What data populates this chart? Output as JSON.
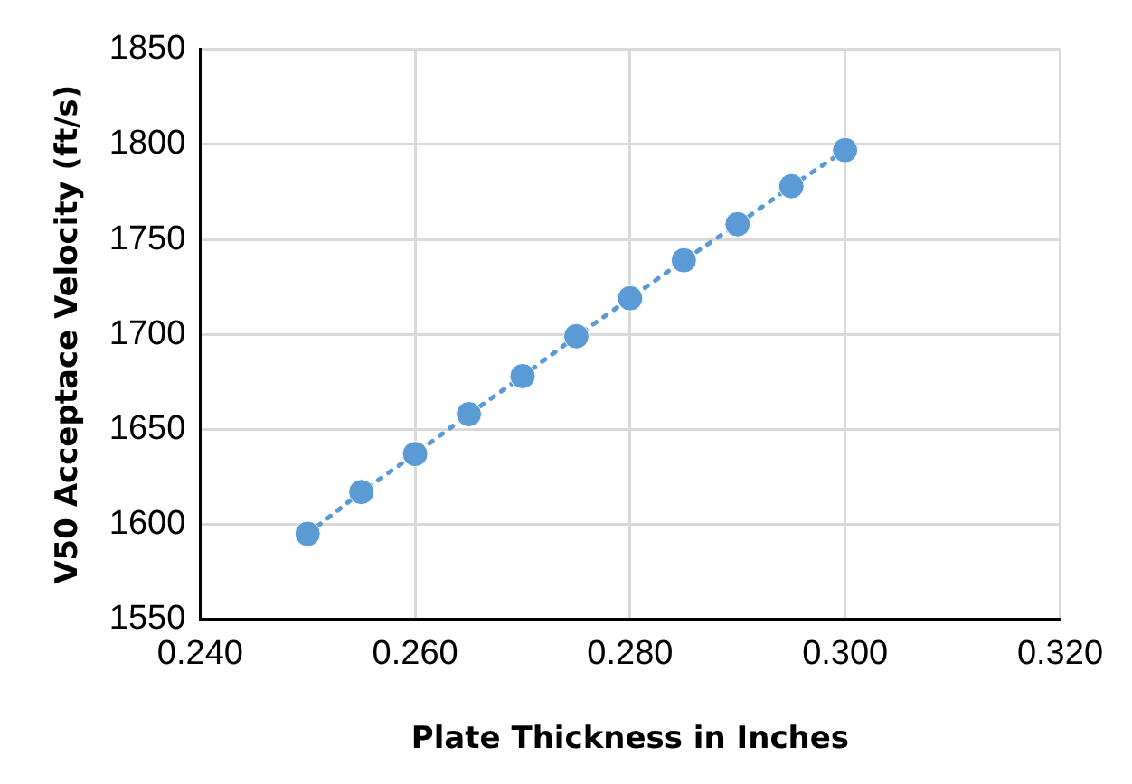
{
  "chart_data": {
    "type": "line",
    "xlabel": "Plate Thickness in Inches",
    "ylabel": "V50 Acceptace Velocity (ft/s)",
    "x": [
      0.25,
      0.255,
      0.26,
      0.265,
      0.27,
      0.275,
      0.28,
      0.285,
      0.29,
      0.295,
      0.3
    ],
    "series": [
      {
        "color": "#5b9bd5",
        "values": [
          1595,
          1617,
          1637,
          1658,
          1678,
          1699,
          1719,
          1739,
          1758,
          1778,
          1797
        ]
      }
    ],
    "xlim": [
      0.24,
      0.32
    ],
    "xticks": [
      {
        "value": 0.24,
        "label": "0.240"
      },
      {
        "value": 0.26,
        "label": "0.260"
      },
      {
        "value": 0.28,
        "label": "0.280"
      },
      {
        "value": 0.3,
        "label": "0.300"
      },
      {
        "value": 0.32,
        "label": "0.320"
      }
    ],
    "ylim": [
      1550,
      1850
    ],
    "yticks": [
      1550,
      1600,
      1650,
      1700,
      1750,
      1800,
      1850
    ],
    "grid": true,
    "legend": false,
    "marker": "circle",
    "line_style": "dotted"
  }
}
